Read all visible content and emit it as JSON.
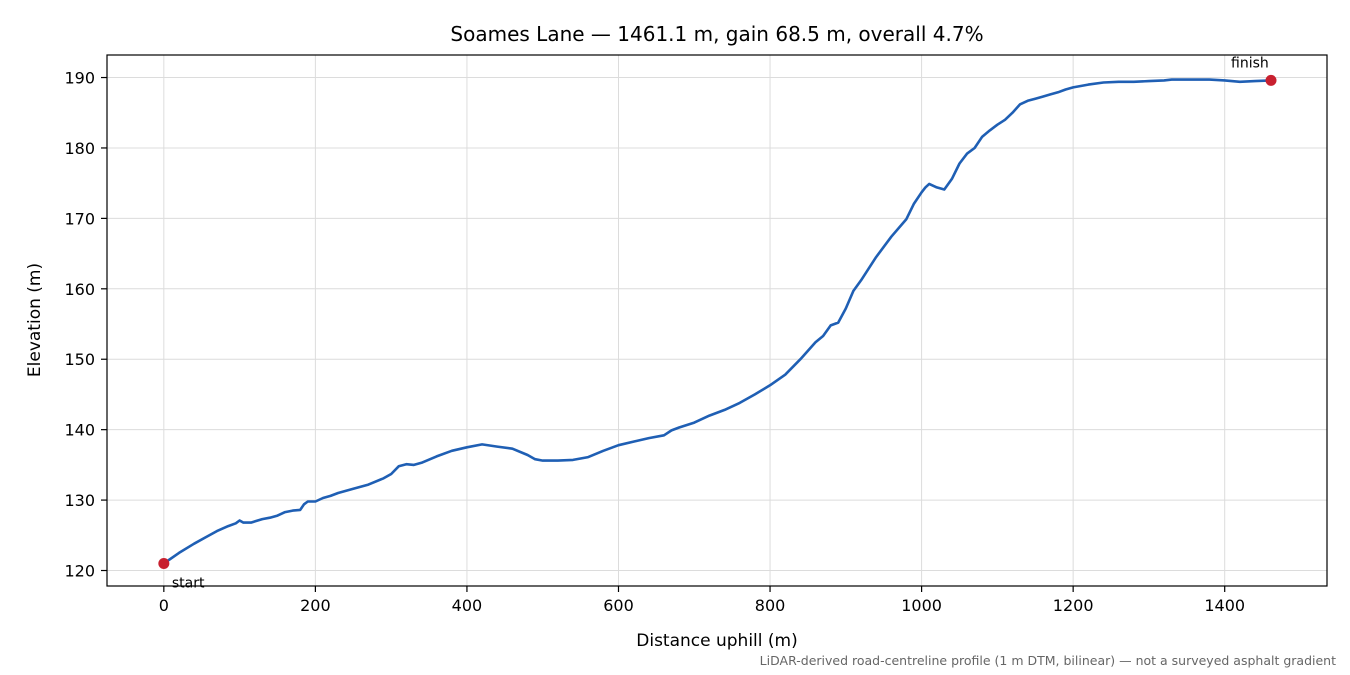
{
  "chart_data": {
    "type": "line",
    "title": "Soames Lane — 1461.1 m, gain 68.5 m, overall 4.7%",
    "xlabel": "Distance uphill (m)",
    "ylabel": "Elevation (m)",
    "xlim": [
      -75,
      1535
    ],
    "ylim": [
      117.8,
      193.2
    ],
    "xticks": [
      0,
      200,
      400,
      600,
      800,
      1000,
      1200,
      1400
    ],
    "yticks": [
      120,
      130,
      140,
      150,
      160,
      170,
      180,
      190
    ],
    "grid": true,
    "footnote": "LiDAR-derived road-centreline profile (1 m DTM, bilinear) — not a surveyed asphalt gradient",
    "line_color": "#1f5fb4",
    "marker_color": "#c8202f",
    "series": [
      {
        "x": [
          0,
          20,
          40,
          55,
          70,
          85,
          95,
          100,
          105,
          115,
          130,
          140,
          150,
          160,
          170,
          180,
          185,
          190,
          200,
          210,
          220,
          230,
          240,
          250,
          270,
          290,
          300,
          310,
          320,
          330,
          340,
          360,
          380,
          400,
          420,
          440,
          460,
          480,
          490,
          500,
          520,
          540,
          560,
          580,
          600,
          620,
          640,
          660,
          670,
          680,
          700,
          720,
          740,
          760,
          780,
          800,
          820,
          840,
          860,
          870,
          880,
          890,
          900,
          910,
          920,
          940,
          960,
          980,
          990,
          1000,
          1005,
          1010,
          1020,
          1030,
          1040,
          1050,
          1060,
          1070,
          1080,
          1090,
          1100,
          1110,
          1120,
          1130,
          1140,
          1150,
          1160,
          1170,
          1180,
          1190,
          1200,
          1220,
          1240,
          1260,
          1280,
          1300,
          1320,
          1330,
          1340,
          1360,
          1380,
          1400,
          1420,
          1440,
          1461.1
        ],
        "y": [
          121.0,
          122.5,
          123.8,
          124.7,
          125.6,
          126.3,
          126.7,
          127.1,
          126.8,
          126.8,
          127.3,
          127.5,
          127.8,
          128.3,
          128.5,
          128.6,
          129.4,
          129.8,
          129.8,
          130.3,
          130.6,
          131.0,
          131.3,
          131.6,
          132.2,
          133.1,
          133.7,
          134.8,
          135.1,
          135.0,
          135.3,
          136.2,
          137.0,
          137.5,
          137.9,
          137.6,
          137.3,
          136.4,
          135.8,
          135.6,
          135.6,
          135.7,
          136.1,
          137.0,
          137.8,
          138.3,
          138.8,
          139.2,
          139.9,
          140.3,
          141.0,
          142.0,
          142.8,
          143.8,
          145.0,
          146.3,
          147.8,
          150.0,
          152.4,
          153.3,
          154.8,
          155.2,
          157.2,
          159.7,
          161.2,
          164.5,
          167.4,
          169.9,
          172.1,
          173.7,
          174.4,
          174.9,
          174.4,
          174.1,
          175.6,
          177.8,
          179.2,
          180.0,
          181.6,
          182.5,
          183.3,
          184.0,
          185.0,
          186.2,
          186.7,
          187.0,
          187.3,
          187.6,
          187.9,
          188.3,
          188.6,
          189.0,
          189.3,
          189.4,
          189.4,
          189.5,
          189.6,
          189.7,
          189.7,
          189.7,
          189.7,
          189.6,
          189.4,
          189.5,
          189.6
        ]
      }
    ],
    "annotations": [
      {
        "label": "start",
        "x": 0,
        "y": 121.0
      },
      {
        "label": "finish",
        "x": 1461.1,
        "y": 189.6
      }
    ]
  }
}
